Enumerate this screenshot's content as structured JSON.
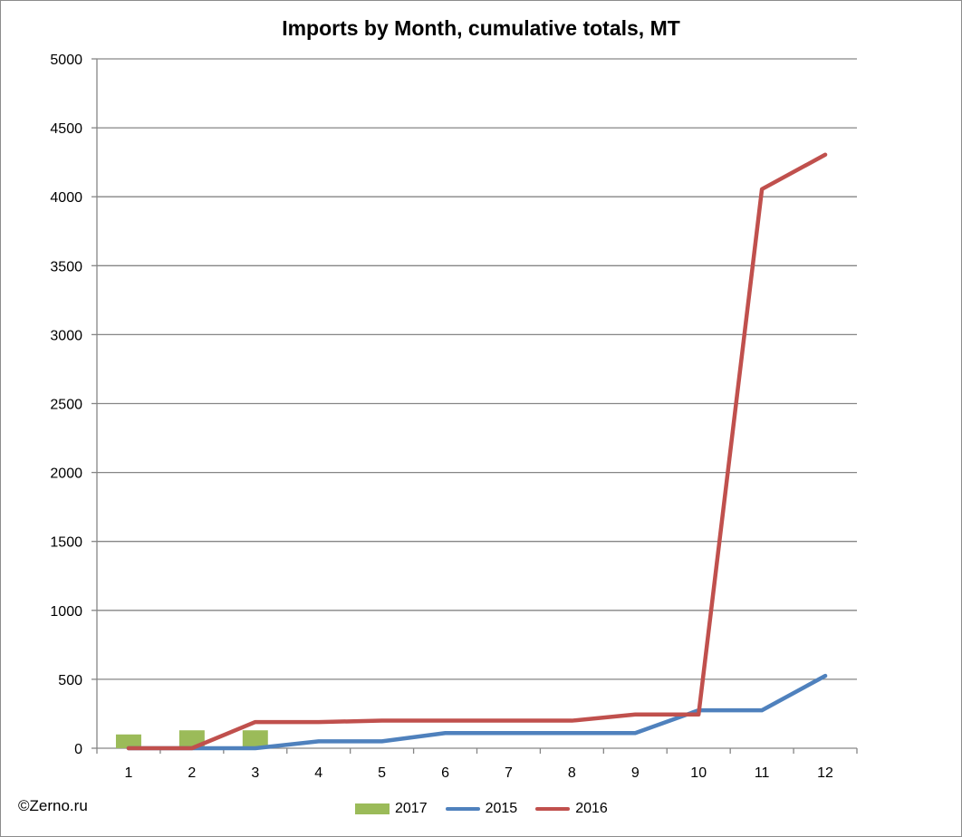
{
  "chart_data": {
    "type": "bar+line",
    "title": "Imports by Month, cumulative totals, MT",
    "xlabel": "",
    "ylabel": "",
    "categories": [
      "1",
      "2",
      "3",
      "4",
      "5",
      "6",
      "7",
      "8",
      "9",
      "10",
      "11",
      "12"
    ],
    "ylim": [
      0,
      5000
    ],
    "yticks": [
      "0",
      "500",
      "1000",
      "1500",
      "2000",
      "2500",
      "3000",
      "3500",
      "4000",
      "4500",
      "5000"
    ],
    "grid": true,
    "legend_position": "bottom",
    "series": [
      {
        "name": "2017",
        "type": "bar",
        "color": "#9bbb59",
        "values": [
          100,
          130,
          130,
          null,
          null,
          null,
          null,
          null,
          null,
          null,
          null,
          null
        ]
      },
      {
        "name": "2015",
        "type": "line",
        "color": "#4f81bd",
        "values": [
          0,
          0,
          0,
          50,
          50,
          110,
          110,
          110,
          110,
          275,
          275,
          525
        ]
      },
      {
        "name": "2016",
        "type": "line",
        "color": "#c0504d",
        "values": [
          0,
          0,
          190,
          190,
          200,
          200,
          200,
          200,
          245,
          245,
          4055,
          4305
        ]
      }
    ]
  },
  "footer": {
    "copyright": "©Zerno.ru"
  }
}
